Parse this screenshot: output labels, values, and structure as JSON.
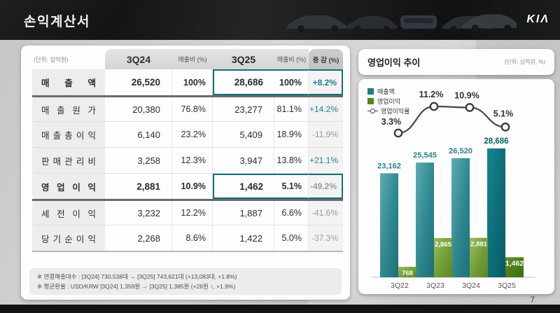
{
  "header": {
    "title": "손익계산서",
    "brand": "KIΛ"
  },
  "page_number": "7",
  "table": {
    "unit_label": "(단위: 십억원)",
    "columns": [
      "3Q24",
      "매출비 (%)",
      "3Q25",
      "매출비 (%)",
      "증 감 (%)"
    ],
    "rows": [
      {
        "label": "매 출 액",
        "values": [
          "26,520",
          "100%",
          "28,686",
          "100%",
          "+8.2%"
        ],
        "bold": true,
        "highlight": true,
        "sep_above": false,
        "delta_positive": true,
        "delta_bold": true
      },
      {
        "label": "매 출 원 가",
        "values": [
          "20,380",
          "76.8%",
          "23,277",
          "81.1%",
          "+14.2%"
        ],
        "bold": false,
        "highlight": false,
        "sep_above": true,
        "delta_positive": true,
        "delta_bold": false
      },
      {
        "label": "매 출 총 이 익",
        "values": [
          "6,140",
          "23.2%",
          "5,409",
          "18.9%",
          "-11.9%"
        ],
        "bold": false,
        "highlight": false,
        "sep_above": false,
        "delta_positive": false,
        "delta_bold": false
      },
      {
        "label": "판 매 관 리 비",
        "values": [
          "3,258",
          "12.3%",
          "3,947",
          "13.8%",
          "+21.1%"
        ],
        "bold": false,
        "highlight": false,
        "sep_above": false,
        "delta_positive": true,
        "delta_bold": false
      },
      {
        "label": "영 업 이 익",
        "values": [
          "2,881",
          "10.9%",
          "1,462",
          "5.1%",
          "-49.2%"
        ],
        "bold": true,
        "highlight": true,
        "sep_above": false,
        "delta_positive": false,
        "delta_bold": false
      },
      {
        "label": "세 전 이 익",
        "values": [
          "3,232",
          "12.2%",
          "1,887",
          "6.6%",
          "-41.6%"
        ],
        "bold": false,
        "highlight": false,
        "sep_above": true,
        "delta_positive": false,
        "delta_bold": false
      },
      {
        "label": "당 기 순 이 익",
        "values": [
          "2,268",
          "8.6%",
          "1,422",
          "5.0%",
          "-37.3%"
        ],
        "bold": false,
        "highlight": false,
        "sep_above": false,
        "delta_positive": false,
        "delta_bold": false
      }
    ],
    "footnotes": [
      "※ 연결매출대수 : [3Q24] 730,538대 → [3Q25] 743,621대 (+13,083대, +1.8%)",
      "※ 평균환율 : USD/KRW [3Q24] 1,359원 → [3Q25] 1,385원 (+26원 ↑, +1.9%)"
    ],
    "accent_color": "#15707e",
    "positive_color": "#1f7e8e",
    "negative_color": "#9b9b9b"
  },
  "chart_panel": {
    "title": "영업이익 추이",
    "unit_label": "(단위: 십억원, %)"
  },
  "chart_data": {
    "type": "bar",
    "title": "영업이익 추이",
    "unit": "(단위: 십억원, %)",
    "categories": [
      "3Q22",
      "3Q23",
      "3Q24",
      "3Q25"
    ],
    "series": [
      {
        "name": "매출액",
        "type": "bar",
        "values": [
          23162,
          25545,
          26520,
          28686
        ],
        "labels": [
          "23,162",
          "25,545",
          "26,520",
          "28,686"
        ],
        "color": "#2e868e",
        "highlight_color": "#0c6b75"
      },
      {
        "name": "영업이익",
        "type": "bar",
        "values": [
          768,
          2865,
          2881,
          1462
        ],
        "labels": [
          "768",
          "2,865",
          "2,881",
          "1,462"
        ],
        "color": "#6f9a33",
        "highlight_color": "#4c7d17"
      },
      {
        "name": "영업이익률",
        "type": "line",
        "values": [
          3.3,
          11.2,
          10.9,
          5.1
        ],
        "labels": [
          "3.3%",
          "11.2%",
          "10.9%",
          "5.1%"
        ],
        "color": "#474747"
      }
    ],
    "highlight_index": 3,
    "legend_position": "top-left",
    "grid": false
  }
}
